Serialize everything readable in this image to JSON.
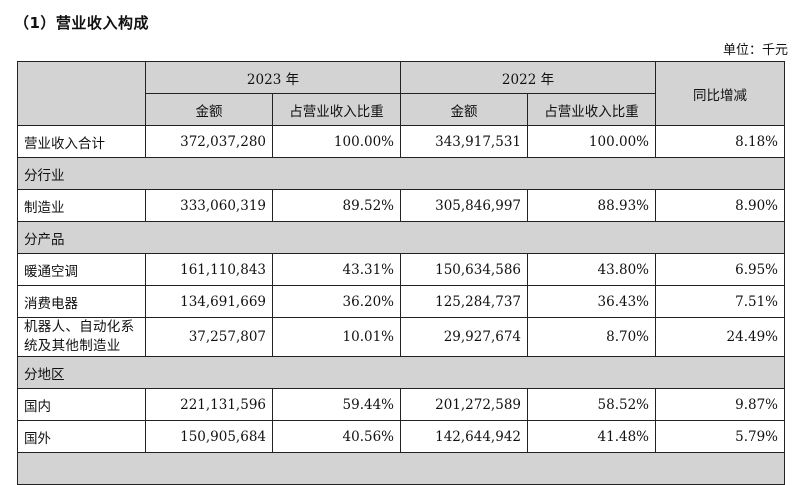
{
  "section_title": "（1）营业收入构成",
  "unit": "单位：千元",
  "header": {
    "year_2023": "2023 年",
    "year_2022": "2022 年",
    "amount": "金额",
    "ratio": "占营业收入比重",
    "yoy": "同比增减"
  },
  "total": {
    "label": "营业收入合计",
    "amt_2023": "372,037,280",
    "ratio_2023": "100.00%",
    "amt_2022": "343,917,531",
    "ratio_2022": "100.00%",
    "yoy": "8.18%"
  },
  "sections": {
    "industry": "分行业",
    "product": "分产品",
    "region": "分地区"
  },
  "industry_rows": [
    {
      "label": "制造业",
      "amt_2023": "333,060,319",
      "ratio_2023": "89.52%",
      "amt_2022": "305,846,997",
      "ratio_2022": "88.93%",
      "yoy": "8.90%"
    }
  ],
  "product_rows": [
    {
      "label": "暖通空调",
      "amt_2023": "161,110,843",
      "ratio_2023": "43.31%",
      "amt_2022": "150,634,586",
      "ratio_2022": "43.80%",
      "yoy": "6.95%"
    },
    {
      "label": "消费电器",
      "amt_2023": "134,691,669",
      "ratio_2023": "36.20%",
      "amt_2022": "125,284,737",
      "ratio_2022": "36.43%",
      "yoy": "7.51%"
    },
    {
      "label": "机器人、自动化系统及其他制造业",
      "amt_2023": "37,257,807",
      "ratio_2023": "10.01%",
      "amt_2022": "29,927,674",
      "ratio_2022": "8.70%",
      "yoy": "24.49%"
    }
  ],
  "region_rows": [
    {
      "label": "国内",
      "amt_2023": "221,131,596",
      "ratio_2023": "59.44%",
      "amt_2022": "201,272,589",
      "ratio_2022": "58.52%",
      "yoy": "9.87%"
    },
    {
      "label": "国外",
      "amt_2023": "150,905,684",
      "ratio_2023": "40.56%",
      "amt_2022": "142,644,942",
      "ratio_2022": "41.48%",
      "yoy": "5.79%"
    }
  ]
}
